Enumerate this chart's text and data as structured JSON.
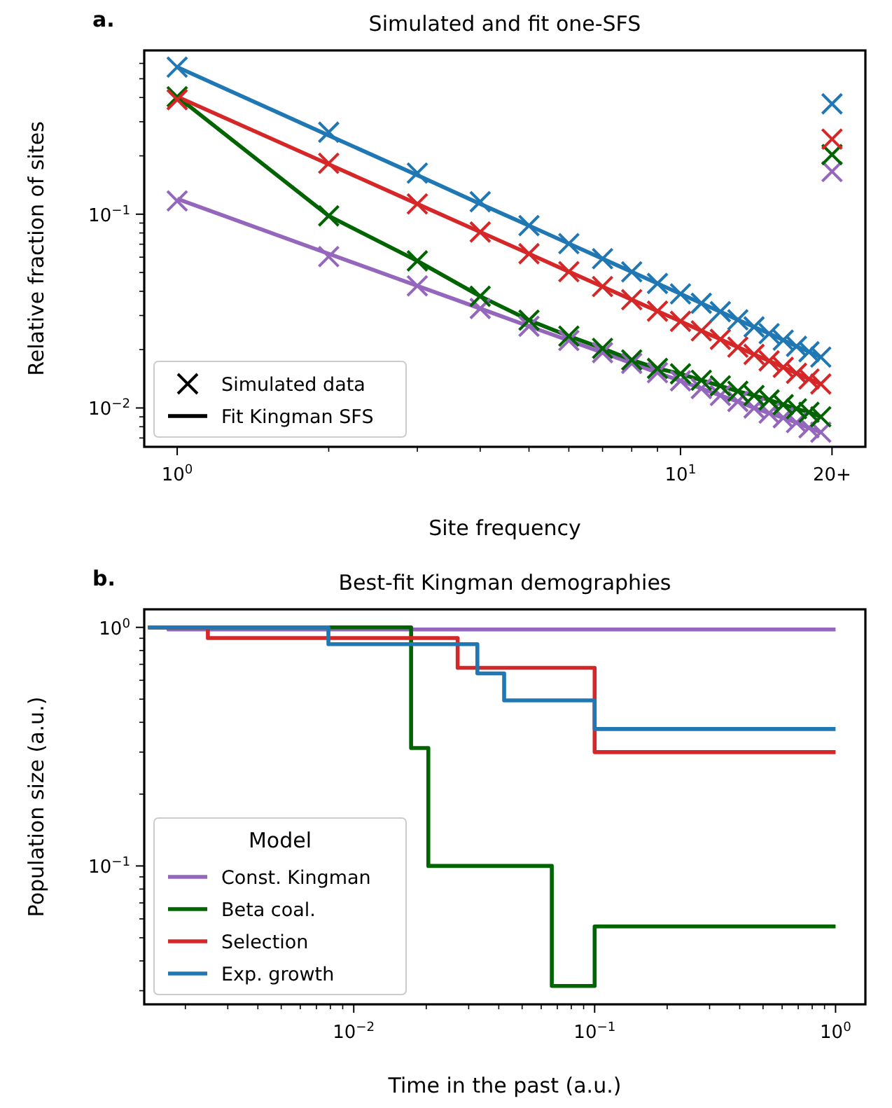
{
  "chart_data": [
    {
      "type": "scatter",
      "title": "Simulated and fit one-SFS",
      "xlabel": "Site frequency",
      "ylabel": "Relative fraction of sites",
      "log": "xy",
      "legend": "bottom left",
      "grid": false,
      "annotations": [
        "a.",
        "Simulated data",
        "Fit Kingman SFS"
      ],
      "xlim": [
        0.86,
        23.3
      ],
      "ylim": [
        0.0063,
        0.7
      ],
      "xticks": [
        {
          "value": 1,
          "label": "10$^{0}$"
        },
        {
          "value": 2,
          "label": null
        },
        {
          "value": 3,
          "label": null
        },
        {
          "value": 4,
          "label": null
        },
        {
          "value": 5,
          "label": null
        },
        {
          "value": 6,
          "label": null
        },
        {
          "value": 7,
          "label": null
        },
        {
          "value": 8,
          "label": null
        },
        {
          "value": 9,
          "label": null
        },
        {
          "value": 10,
          "label": "10$^{1}$"
        },
        {
          "value": 20,
          "label": "20+"
        }
      ],
      "yticks": [
        {
          "value": 0.007,
          "label": null
        },
        {
          "value": 0.008,
          "label": null
        },
        {
          "value": 0.009,
          "label": null
        },
        {
          "value": 0.01,
          "label": "10$^{−2}$"
        },
        {
          "value": 0.02,
          "label": null
        },
        {
          "value": 0.03,
          "label": null
        },
        {
          "value": 0.04,
          "label": null
        },
        {
          "value": 0.05,
          "label": null
        },
        {
          "value": 0.06,
          "label": null
        },
        {
          "value": 0.07,
          "label": null
        },
        {
          "value": 0.08,
          "label": null
        },
        {
          "value": 0.09,
          "label": null
        },
        {
          "value": 0.1,
          "label": "10$^{−1}$"
        },
        {
          "value": 0.2,
          "label": null
        },
        {
          "value": 0.3,
          "label": null
        },
        {
          "value": 0.4,
          "label": null
        },
        {
          "value": 0.5,
          "label": null
        },
        {
          "value": 0.6,
          "label": null
        }
      ],
      "series": [
        {
          "type": "line",
          "line_style": "solid",
          "color": "#9467bd",
          "x": [
            1,
            2,
            3,
            4,
            5,
            6,
            7,
            8,
            9,
            10,
            11,
            12,
            13,
            14,
            15,
            16,
            17,
            18,
            19
          ],
          "values": [
            0.12,
            0.0625,
            0.0427,
            0.0326,
            0.0264,
            0.0223,
            0.0193,
            0.017,
            0.0152,
            0.0138,
            0.0126,
            0.0116,
            0.0108,
            0.01,
            0.0094,
            0.0089,
            0.0084,
            0.0079,
            0.0075
          ]
        },
        {
          "type": "line",
          "line_style": "solid",
          "color": "#006400",
          "x": [
            1,
            2,
            3,
            4,
            5,
            6,
            7,
            8,
            9,
            10,
            11,
            12,
            13,
            14,
            15,
            16,
            17,
            18,
            19
          ],
          "values": [
            0.404,
            0.098,
            0.0574,
            0.0377,
            0.0284,
            0.0235,
            0.0203,
            0.0177,
            0.016,
            0.015,
            0.0139,
            0.013,
            0.0122,
            0.0116,
            0.011,
            0.0104,
            0.0099,
            0.0095,
            0.009
          ]
        },
        {
          "type": "line",
          "line_style": "solid",
          "color": "#d62728",
          "x": [
            1,
            2,
            3,
            4,
            5,
            6,
            7,
            8,
            9,
            10,
            11,
            12,
            13,
            14,
            15,
            16,
            17,
            18,
            19
          ],
          "values": [
            0.404,
            0.181,
            0.113,
            0.0809,
            0.0625,
            0.0505,
            0.0423,
            0.0362,
            0.0316,
            0.028,
            0.025,
            0.0226,
            0.0206,
            0.0189,
            0.0175,
            0.0162,
            0.0151,
            0.0141,
            0.0133
          ]
        },
        {
          "type": "line",
          "line_style": "solid",
          "color": "#1f77b4",
          "x": [
            1,
            2,
            3,
            4,
            5,
            6,
            7,
            8,
            9,
            10,
            11,
            12,
            13,
            14,
            15,
            16,
            17,
            18,
            19
          ],
          "values": [
            0.574,
            0.255,
            0.159,
            0.113,
            0.0873,
            0.0705,
            0.0589,
            0.0504,
            0.0439,
            0.0388,
            0.0347,
            0.0314,
            0.0285,
            0.0262,
            0.0242,
            0.0224,
            0.0208,
            0.0195,
            0.0183
          ]
        },
        {
          "marker": "cross",
          "color": "#9467bd",
          "x": [
            1,
            2,
            3,
            4,
            5,
            6,
            7,
            8,
            9,
            10,
            11,
            12,
            13,
            14,
            15,
            16,
            17,
            18,
            19,
            20
          ],
          "values": [
            0.117,
            0.0604,
            0.0427,
            0.0326,
            0.0264,
            0.0223,
            0.0193,
            0.017,
            0.0152,
            0.0138,
            0.0126,
            0.0116,
            0.0108,
            0.01,
            0.0094,
            0.0089,
            0.0084,
            0.0079,
            0.0075,
            0.166
          ]
        },
        {
          "marker": "cross",
          "color": "#006400",
          "x": [
            1,
            2,
            3,
            4,
            5,
            6,
            7,
            8,
            9,
            10,
            11,
            12,
            13,
            14,
            15,
            16,
            17,
            18,
            19,
            20
          ],
          "values": [
            0.404,
            0.098,
            0.0574,
            0.0377,
            0.0284,
            0.0235,
            0.0203,
            0.0177,
            0.016,
            0.015,
            0.0139,
            0.013,
            0.0122,
            0.0116,
            0.011,
            0.0104,
            0.0099,
            0.0095,
            0.009,
            0.203
          ]
        },
        {
          "marker": "cross",
          "color": "#d62728",
          "x": [
            1,
            2,
            3,
            4,
            5,
            6,
            7,
            8,
            9,
            10,
            11,
            12,
            13,
            14,
            15,
            16,
            17,
            18,
            19,
            20
          ],
          "values": [
            0.39,
            0.183,
            0.113,
            0.0809,
            0.0625,
            0.0505,
            0.0423,
            0.0362,
            0.0316,
            0.028,
            0.025,
            0.0226,
            0.0206,
            0.0189,
            0.0175,
            0.0162,
            0.0151,
            0.0141,
            0.0133,
            0.244
          ]
        },
        {
          "marker": "cross",
          "color": "#1f77b4",
          "x": [
            1,
            2,
            3,
            4,
            5,
            6,
            7,
            8,
            9,
            10,
            11,
            12,
            13,
            14,
            15,
            16,
            17,
            18,
            19,
            20
          ],
          "values": [
            0.574,
            0.265,
            0.163,
            0.116,
            0.0873,
            0.0705,
            0.0589,
            0.0504,
            0.0439,
            0.0388,
            0.0347,
            0.0314,
            0.0285,
            0.0262,
            0.0242,
            0.0224,
            0.0208,
            0.0195,
            0.0183,
            0.371
          ]
        }
      ]
    },
    {
      "type": "step",
      "title": "Best-fit Kingman demographies",
      "xlabel": "Time in the past (a.u.)",
      "ylabel": "Population size (a.u.)",
      "log": "xy",
      "legend": "bottom left",
      "legend_title": "Model",
      "grid": false,
      "annotations": [
        "b."
      ],
      "xlim": [
        0.00135,
        1.33
      ],
      "ylim": [
        0.0263,
        1.19
      ],
      "xticks": [
        {
          "value": 0.002,
          "label": null
        },
        {
          "value": 0.003,
          "label": null
        },
        {
          "value": 0.004,
          "label": null
        },
        {
          "value": 0.005,
          "label": null
        },
        {
          "value": 0.006,
          "label": null
        },
        {
          "value": 0.007,
          "label": null
        },
        {
          "value": 0.008,
          "label": null
        },
        {
          "value": 0.009,
          "label": null
        },
        {
          "value": 0.01,
          "label": "10$^{−2}$"
        },
        {
          "value": 0.02,
          "label": null
        },
        {
          "value": 0.03,
          "label": null
        },
        {
          "value": 0.04,
          "label": null
        },
        {
          "value": 0.05,
          "label": null
        },
        {
          "value": 0.06,
          "label": null
        },
        {
          "value": 0.07,
          "label": null
        },
        {
          "value": 0.08,
          "label": null
        },
        {
          "value": 0.09,
          "label": null
        },
        {
          "value": 0.1,
          "label": "10$^{−1}$"
        },
        {
          "value": 0.2,
          "label": null
        },
        {
          "value": 0.3,
          "label": null
        },
        {
          "value": 0.4,
          "label": null
        },
        {
          "value": 0.5,
          "label": null
        },
        {
          "value": 0.6,
          "label": null
        },
        {
          "value": 0.7,
          "label": null
        },
        {
          "value": 0.8,
          "label": null
        },
        {
          "value": 0.9,
          "label": null
        },
        {
          "value": 1,
          "label": "10$^{0}$"
        }
      ],
      "yticks": [
        {
          "value": 0.03,
          "label": null
        },
        {
          "value": 0.04,
          "label": null
        },
        {
          "value": 0.05,
          "label": null
        },
        {
          "value": 0.06,
          "label": null
        },
        {
          "value": 0.07,
          "label": null
        },
        {
          "value": 0.08,
          "label": null
        },
        {
          "value": 0.09,
          "label": null
        },
        {
          "value": 0.1,
          "label": "10$^{−1}$"
        },
        {
          "value": 0.2,
          "label": null
        },
        {
          "value": 0.3,
          "label": null
        },
        {
          "value": 0.4,
          "label": null
        },
        {
          "value": 0.5,
          "label": null
        },
        {
          "value": 0.6,
          "label": null
        },
        {
          "value": 0.7,
          "label": null
        },
        {
          "value": 0.8,
          "label": null
        },
        {
          "value": 0.9,
          "label": null
        },
        {
          "value": 1,
          "label": "10$^{0}$"
        }
      ],
      "series": [
        {
          "name": "Const. Kingman",
          "color": "#9467bd",
          "x": [
            0.0014,
            0.0017,
            1.0
          ],
          "values": [
            1.0,
            0.98,
            0.98
          ]
        },
        {
          "name": "Beta coal.",
          "color": "#006400",
          "x": [
            0.0014,
            0.0173,
            0.0204,
            0.0664,
            0.1,
            1.0
          ],
          "values": [
            1.0,
            0.312,
            0.1,
            0.0314,
            0.0558,
            0.0558
          ]
        },
        {
          "name": "Selection",
          "color": "#d62728",
          "x": [
            0.0014,
            0.00248,
            0.027,
            0.1,
            1.0
          ],
          "values": [
            1.0,
            0.902,
            0.677,
            0.3,
            0.3
          ]
        },
        {
          "name": "Exp. growth",
          "color": "#1f77b4",
          "x": [
            0.0014,
            0.00785,
            0.0326,
            0.0421,
            0.1,
            1.0
          ],
          "values": [
            1.0,
            0.85,
            0.641,
            0.494,
            0.375,
            0.375
          ]
        }
      ]
    }
  ]
}
